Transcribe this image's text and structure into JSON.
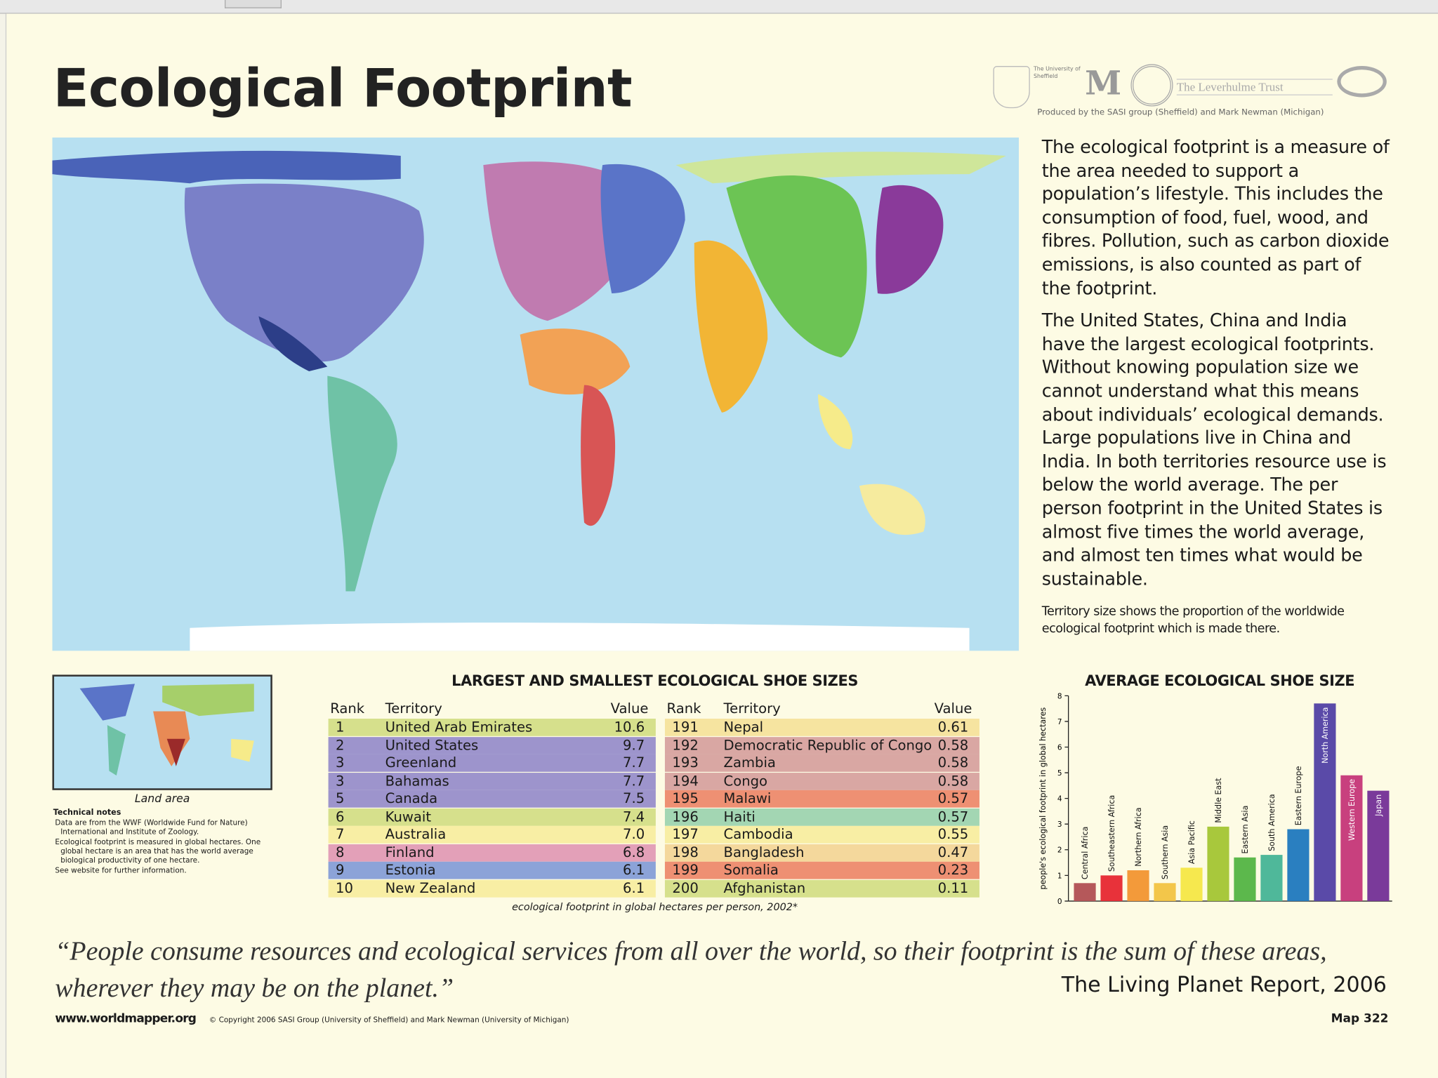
{
  "header": {
    "title": "Ecological Footprint",
    "logos": [
      "The University of Sheffield",
      "M",
      "The Leverhulme Trust"
    ],
    "credit": "Produced by the SASI group (Sheffield) and Mark Newman (Michigan)"
  },
  "description": {
    "paragraphs": [
      "The ecological footprint is a measure of the area needed to support a population’s lifestyle. This includes the consumption of food, fuel, wood, and fibres. Pollution, such as carbon dioxide emissions, is also counted as part of the footprint.",
      "The United States, China and India have the largest ecological footprints. Without knowing population size we cannot understand what this means about individuals’ ecological demands. Large populations live in China and India. In both territories resource use is below the world average. The per person footprint in the United States is almost five times the world average, and almost ten times what would be sustainable."
    ],
    "note": "Territory size shows the proportion of the worldwide ecological footprint which is made there."
  },
  "inset": {
    "caption": "Land area"
  },
  "technical_notes": {
    "title": "Technical notes",
    "items": [
      "Data are from the WWF (Worldwide Fund for Nature) International and Institute of Zoology.",
      "Ecological footprint is measured in global hectares. One global hectare is an area that has the world average biological productivity of one hectare.",
      "See website for further information."
    ]
  },
  "table": {
    "title": "LARGEST AND SMALLEST ECOLOGICAL SHOE SIZES",
    "columns": [
      "Rank",
      "Territory",
      "Value"
    ],
    "left": [
      {
        "rank": "1",
        "territory": "United Arab Emirates",
        "value": "10.6",
        "color": "#d6e08c"
      },
      {
        "rank": "2",
        "territory": "United States",
        "value": "9.7",
        "color": "#9d94cc"
      },
      {
        "rank": "3",
        "territory": "Greenland",
        "value": "7.7",
        "color": "#9d94cc"
      },
      {
        "rank": "3",
        "territory": "Bahamas",
        "value": "7.7",
        "color": "#9d94cc"
      },
      {
        "rank": "5",
        "territory": "Canada",
        "value": "7.5",
        "color": "#9d94cc"
      },
      {
        "rank": "6",
        "territory": "Kuwait",
        "value": "7.4",
        "color": "#d6e08c"
      },
      {
        "rank": "7",
        "territory": "Australia",
        "value": "7.0",
        "color": "#f8eea4"
      },
      {
        "rank": "8",
        "territory": "Finland",
        "value": "6.8",
        "color": "#e3a0b8"
      },
      {
        "rank": "9",
        "territory": "Estonia",
        "value": "6.1",
        "color": "#8ca3d8"
      },
      {
        "rank": "10",
        "territory": "New Zealand",
        "value": "6.1",
        "color": "#f8eea4"
      }
    ],
    "right": [
      {
        "rank": "191",
        "territory": "Nepal",
        "value": "0.61",
        "color": "#f6e4a0"
      },
      {
        "rank": "192",
        "territory": "Democratic Republic of Congo",
        "value": "0.58",
        "color": "#d9a7a3"
      },
      {
        "rank": "193",
        "territory": "Zambia",
        "value": "0.58",
        "color": "#d9a7a3"
      },
      {
        "rank": "194",
        "territory": "Congo",
        "value": "0.58",
        "color": "#d9a7a3"
      },
      {
        "rank": "195",
        "territory": "Malawi",
        "value": "0.57",
        "color": "#ee9073"
      },
      {
        "rank": "196",
        "territory": "Haiti",
        "value": "0.57",
        "color": "#a3d6b3"
      },
      {
        "rank": "197",
        "territory": "Cambodia",
        "value": "0.55",
        "color": "#f8eea4"
      },
      {
        "rank": "198",
        "territory": "Bangladesh",
        "value": "0.47",
        "color": "#f4d89c"
      },
      {
        "rank": "199",
        "territory": "Somalia",
        "value": "0.23",
        "color": "#ee9073"
      },
      {
        "rank": "200",
        "territory": "Afghanistan",
        "value": "0.11",
        "color": "#d6e08c"
      }
    ],
    "caption": "ecological footprint in global hectares per person, 2002*"
  },
  "bar_chart": {
    "type": "bar",
    "title": "AVERAGE ECOLOGICAL SHOE SIZE",
    "y_label": "people's ecological footprint in global hectares",
    "categories": [
      "Central Africa",
      "Southeastern Africa",
      "Northern Africa",
      "Southern Asia",
      "Asia Pacific",
      "Middle East",
      "Eastern Asia",
      "South America",
      "Eastern Europe",
      "North America",
      "Western Europe",
      "Japan"
    ],
    "values": [
      0.7,
      1.0,
      1.2,
      0.7,
      1.3,
      2.9,
      1.7,
      1.8,
      2.8,
      7.7,
      4.9,
      4.3
    ],
    "colors": [
      "#b5585a",
      "#e8323a",
      "#f39a3a",
      "#f3c64a",
      "#f6e84e",
      "#a8c83c",
      "#5cb84c",
      "#4fb89a",
      "#2a7fc0",
      "#5a4aa8",
      "#c8407e",
      "#7a3a9a"
    ],
    "ylim": [
      0,
      8
    ],
    "yticks": [
      0,
      1,
      2,
      3,
      4,
      5,
      6,
      7,
      8
    ]
  },
  "quote": {
    "text": "“People consume resources and ecological services from all over the world, so their footprint is the sum of these areas, wherever they may be on the planet.”",
    "source": "The Living Planet Report, 2006"
  },
  "footer": {
    "url": "www.worldmapper.org",
    "copyright": "© Copyright 2006 SASI Group (University of Sheffield) and Mark Newman (University of Michigan)",
    "map_number": "Map 322"
  }
}
